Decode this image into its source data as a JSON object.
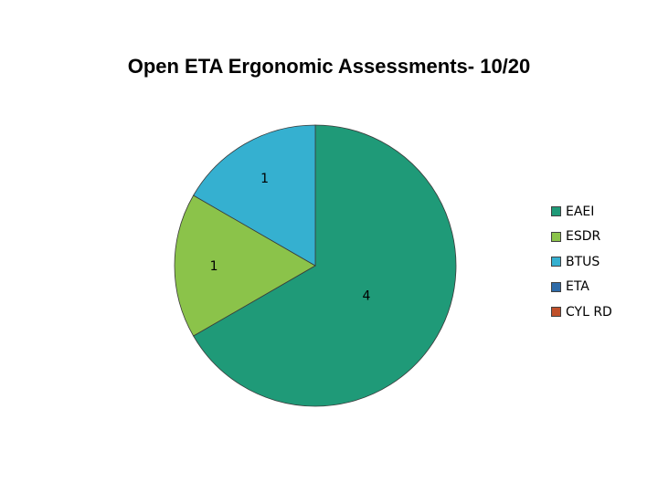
{
  "chart_data": {
    "type": "pie",
    "title": "Open ETA Ergonomic Assessments- 10/20",
    "categories": [
      "EAEI",
      "ESDR",
      "BTUS",
      "ETA",
      "CYL RD"
    ],
    "values": [
      4,
      1,
      1,
      0,
      0
    ],
    "colors": [
      "#1f9a78",
      "#8bc34a",
      "#35b0d0",
      "#2e6ba8",
      "#c0502a"
    ],
    "data_labels": [
      "4",
      "1",
      "1",
      "",
      ""
    ],
    "legend_position": "right"
  }
}
